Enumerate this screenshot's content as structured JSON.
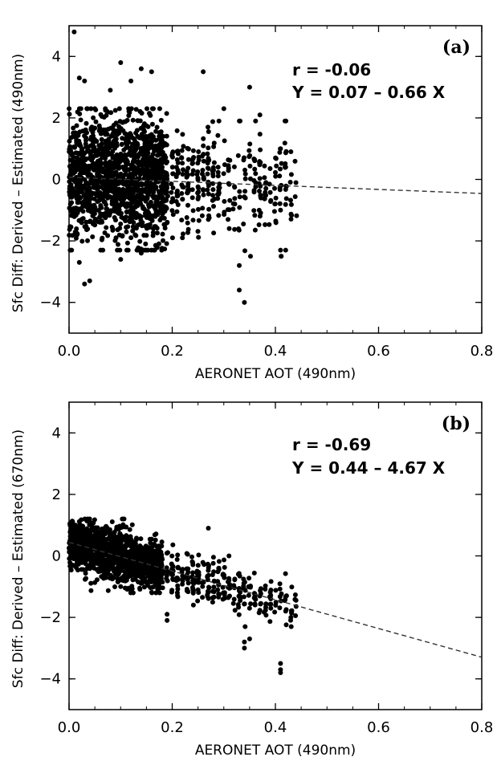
{
  "chart_data": [
    {
      "type": "scatter",
      "panel_label": "(a)",
      "xlabel": "AERONET AOT (490nm)",
      "ylabel": "Sfc Diff: Derived – Estimated (490nm)",
      "xlim": [
        0.0,
        0.8
      ],
      "ylim": [
        -5,
        5
      ],
      "xticks": [
        "0.0",
        "0.2",
        "0.4",
        "0.6",
        "0.8"
      ],
      "yticks": [
        "−4",
        "−2",
        "0",
        "2",
        "4"
      ],
      "ytick_values": [
        -4,
        -2,
        0,
        2,
        4
      ],
      "xtick_values": [
        0.0,
        0.2,
        0.4,
        0.6,
        0.8
      ],
      "r_text": "r = -0.06",
      "fit_text": "Y = 0.07 – 0.66 X",
      "fit": {
        "intercept": 0.07,
        "slope": -0.66
      },
      "grid": false,
      "points_outline": [
        [
          0.01,
          4.8
        ],
        [
          0.02,
          3.3
        ],
        [
          0.03,
          3.2
        ],
        [
          0.05,
          2.3
        ],
        [
          0.08,
          2.9
        ],
        [
          0.1,
          3.8
        ],
        [
          0.12,
          3.2
        ],
        [
          0.14,
          3.6
        ],
        [
          0.16,
          3.5
        ],
        [
          0.26,
          3.5
        ],
        [
          0.35,
          3.0
        ],
        [
          0.02,
          -2.7
        ],
        [
          0.04,
          -3.3
        ],
        [
          0.03,
          -3.4
        ],
        [
          0.1,
          -2.6
        ],
        [
          0.14,
          -2.4
        ],
        [
          0.33,
          -3.6
        ],
        [
          0.34,
          -4.0
        ],
        [
          0.33,
          -2.8
        ],
        [
          0.3,
          2.3
        ],
        [
          0.37,
          2.1
        ],
        [
          0.41,
          1.0
        ],
        [
          0.43,
          0.9
        ],
        [
          0.41,
          -2.3
        ],
        [
          0.42,
          -2.3
        ]
      ],
      "dense_regions": [
        {
          "x_range": [
            0.0,
            0.19
          ],
          "y_range": [
            -2.0,
            2.0
          ],
          "count": 1400
        },
        {
          "x_range": [
            0.19,
            0.28
          ],
          "y_range": [
            -1.6,
            1.4
          ],
          "count": 160
        },
        {
          "x_range": [
            0.28,
            0.44
          ],
          "y_range": [
            -2.2,
            1.6
          ],
          "count": 170
        }
      ]
    },
    {
      "type": "scatter",
      "panel_label": "(b)",
      "xlabel": "AERONET AOT (490nm)",
      "ylabel": "Sfc Diff: Derived – Estimated (670nm)",
      "xlim": [
        0.0,
        0.8
      ],
      "ylim": [
        -5,
        5
      ],
      "xticks": [
        "0.0",
        "0.2",
        "0.4",
        "0.6",
        "0.8"
      ],
      "yticks": [
        "−4",
        "−2",
        "0",
        "2",
        "4"
      ],
      "ytick_values": [
        -4,
        -2,
        0,
        2,
        4
      ],
      "xtick_values": [
        0.0,
        0.2,
        0.4,
        0.6,
        0.8
      ],
      "r_text": "r = -0.69",
      "fit_text": "Y = 0.44 – 4.67 X",
      "fit": {
        "intercept": 0.44,
        "slope": -4.67
      },
      "grid": false,
      "points_outline": [
        [
          0.04,
          1.2
        ],
        [
          0.19,
          -1.9
        ],
        [
          0.19,
          -2.1
        ],
        [
          0.34,
          -2.8
        ],
        [
          0.34,
          -3.0
        ],
        [
          0.35,
          -2.7
        ],
        [
          0.41,
          -3.5
        ],
        [
          0.41,
          -3.7
        ],
        [
          0.41,
          -3.8
        ],
        [
          0.43,
          -2.0
        ],
        [
          0.42,
          -1.8
        ],
        [
          0.27,
          0.9
        ],
        [
          0.31,
          0.0
        ],
        [
          0.1,
          -1.0
        ],
        [
          0.14,
          -0.7
        ]
      ],
      "dense_regions": [
        {
          "x_range": [
            0.0,
            0.18
          ],
          "y_range": [
            -0.9,
            0.9
          ],
          "count": 1300
        },
        {
          "x_range": [
            0.18,
            0.3
          ],
          "y_range": [
            -1.3,
            0.4
          ],
          "count": 170
        },
        {
          "x_range": [
            0.3,
            0.44
          ],
          "y_range": [
            -2.0,
            -0.3
          ],
          "count": 120
        }
      ]
    }
  ]
}
